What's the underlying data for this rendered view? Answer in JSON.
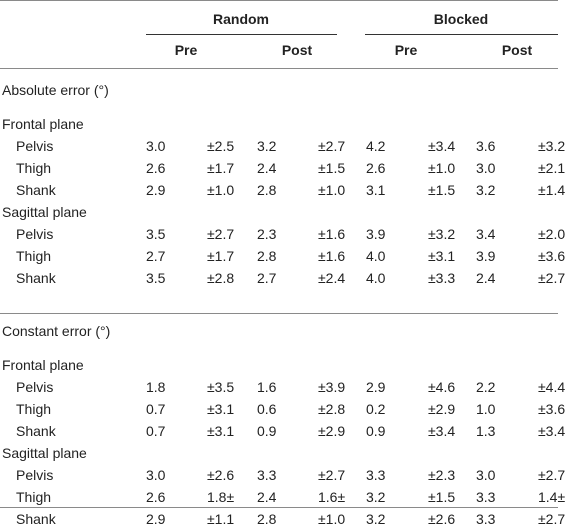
{
  "header": {
    "groups": [
      "Random",
      "Blocked"
    ],
    "phases": [
      "Pre",
      "Post",
      "Pre",
      "Post"
    ]
  },
  "sections": [
    {
      "title": "Absolute error (°)",
      "planes": [
        {
          "name": "Frontal plane",
          "rows": [
            {
              "label": "Pelvis",
              "values": [
                "3.0",
                "±2.5",
                "3.2",
                "±2.7",
                "4.2",
                "±3.4",
                "3.6",
                "±3.2"
              ]
            },
            {
              "label": "Thigh",
              "values": [
                "2.6",
                "±1.7",
                "2.4",
                "±1.5",
                "2.6",
                "±1.0",
                "3.0",
                "±2.1"
              ]
            },
            {
              "label": "Shank",
              "values": [
                "2.9",
                "±1.0",
                "2.8",
                "±1.0",
                "3.1",
                "±1.5",
                "3.2",
                "±1.4"
              ]
            }
          ]
        },
        {
          "name": "Sagittal plane",
          "rows": [
            {
              "label": "Pelvis",
              "values": [
                "3.5",
                "±2.7",
                "2.3",
                "±1.6",
                "3.9",
                "±3.2",
                "3.4",
                "±2.0"
              ]
            },
            {
              "label": "Thigh",
              "values": [
                "2.7",
                "±1.7",
                "2.8",
                "±1.6",
                "4.0",
                "±3.1",
                "3.9",
                "±3.6"
              ]
            },
            {
              "label": "Shank",
              "values": [
                "3.5",
                "±2.8",
                "2.7",
                "±2.4",
                "4.0",
                "±3.3",
                "2.4",
                "±2.7"
              ]
            }
          ]
        }
      ]
    },
    {
      "title": "Constant error (°)",
      "planes": [
        {
          "name": "Frontal plane",
          "rows": [
            {
              "label": "Pelvis",
              "values": [
                "1.8",
                "±3.5",
                "1.6",
                "±3.9",
                "2.9",
                "±4.6",
                "2.2",
                "±4.4"
              ]
            },
            {
              "label": "Thigh",
              "values": [
                "0.7",
                "±3.1",
                "0.6",
                "±2.8",
                "0.2",
                "±2.9",
                "1.0",
                "±3.6"
              ]
            },
            {
              "label": "Shank",
              "values": [
                "0.7",
                "±3.1",
                "0.9",
                "±2.9",
                "0.9",
                "±3.4",
                "1.3",
                "±3.4"
              ]
            }
          ]
        },
        {
          "name": "Sagittal plane",
          "rows": [
            {
              "label": "Pelvis",
              "values": [
                "3.0",
                "±2.6",
                "3.3",
                "±2.7",
                "3.3",
                "±2.3",
                "3.0",
                "±2.7"
              ]
            },
            {
              "label": "Thigh",
              "values": [
                "2.6",
                "1.8±",
                "2.4",
                "1.6±",
                "3.2",
                "±1.5",
                "3.3",
                "1.4±"
              ]
            },
            {
              "label": "Shank",
              "values": [
                "2.9",
                "±1.1",
                "2.8",
                "±1.0",
                "3.2",
                "±2.6",
                "3.3",
                "±2.7"
              ]
            }
          ]
        }
      ]
    }
  ]
}
